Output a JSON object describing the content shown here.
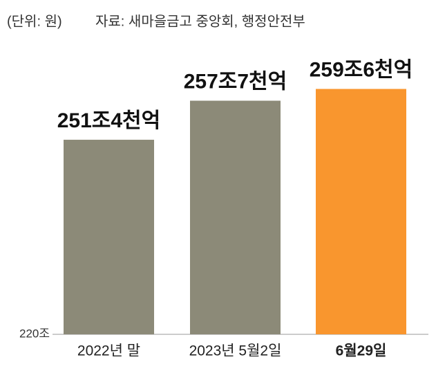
{
  "chart_data": {
    "type": "bar",
    "unit_note": "(단위: 원)",
    "source": "자료: 새마을금고 중앙회, 행정안전부",
    "categories": [
      "2022년 말",
      "2023년 5월2일",
      "6월29일"
    ],
    "values": [
      251.4,
      257.7,
      259.6
    ],
    "value_labels": [
      "251조4천억",
      "257조7천억",
      "259조6천억"
    ],
    "colors": [
      "#8c8a78",
      "#8c8a78",
      "#f9962e"
    ],
    "ylim": [
      220,
      262
    ],
    "yticks": [
      {
        "value": 220,
        "label": "220조"
      }
    ]
  }
}
